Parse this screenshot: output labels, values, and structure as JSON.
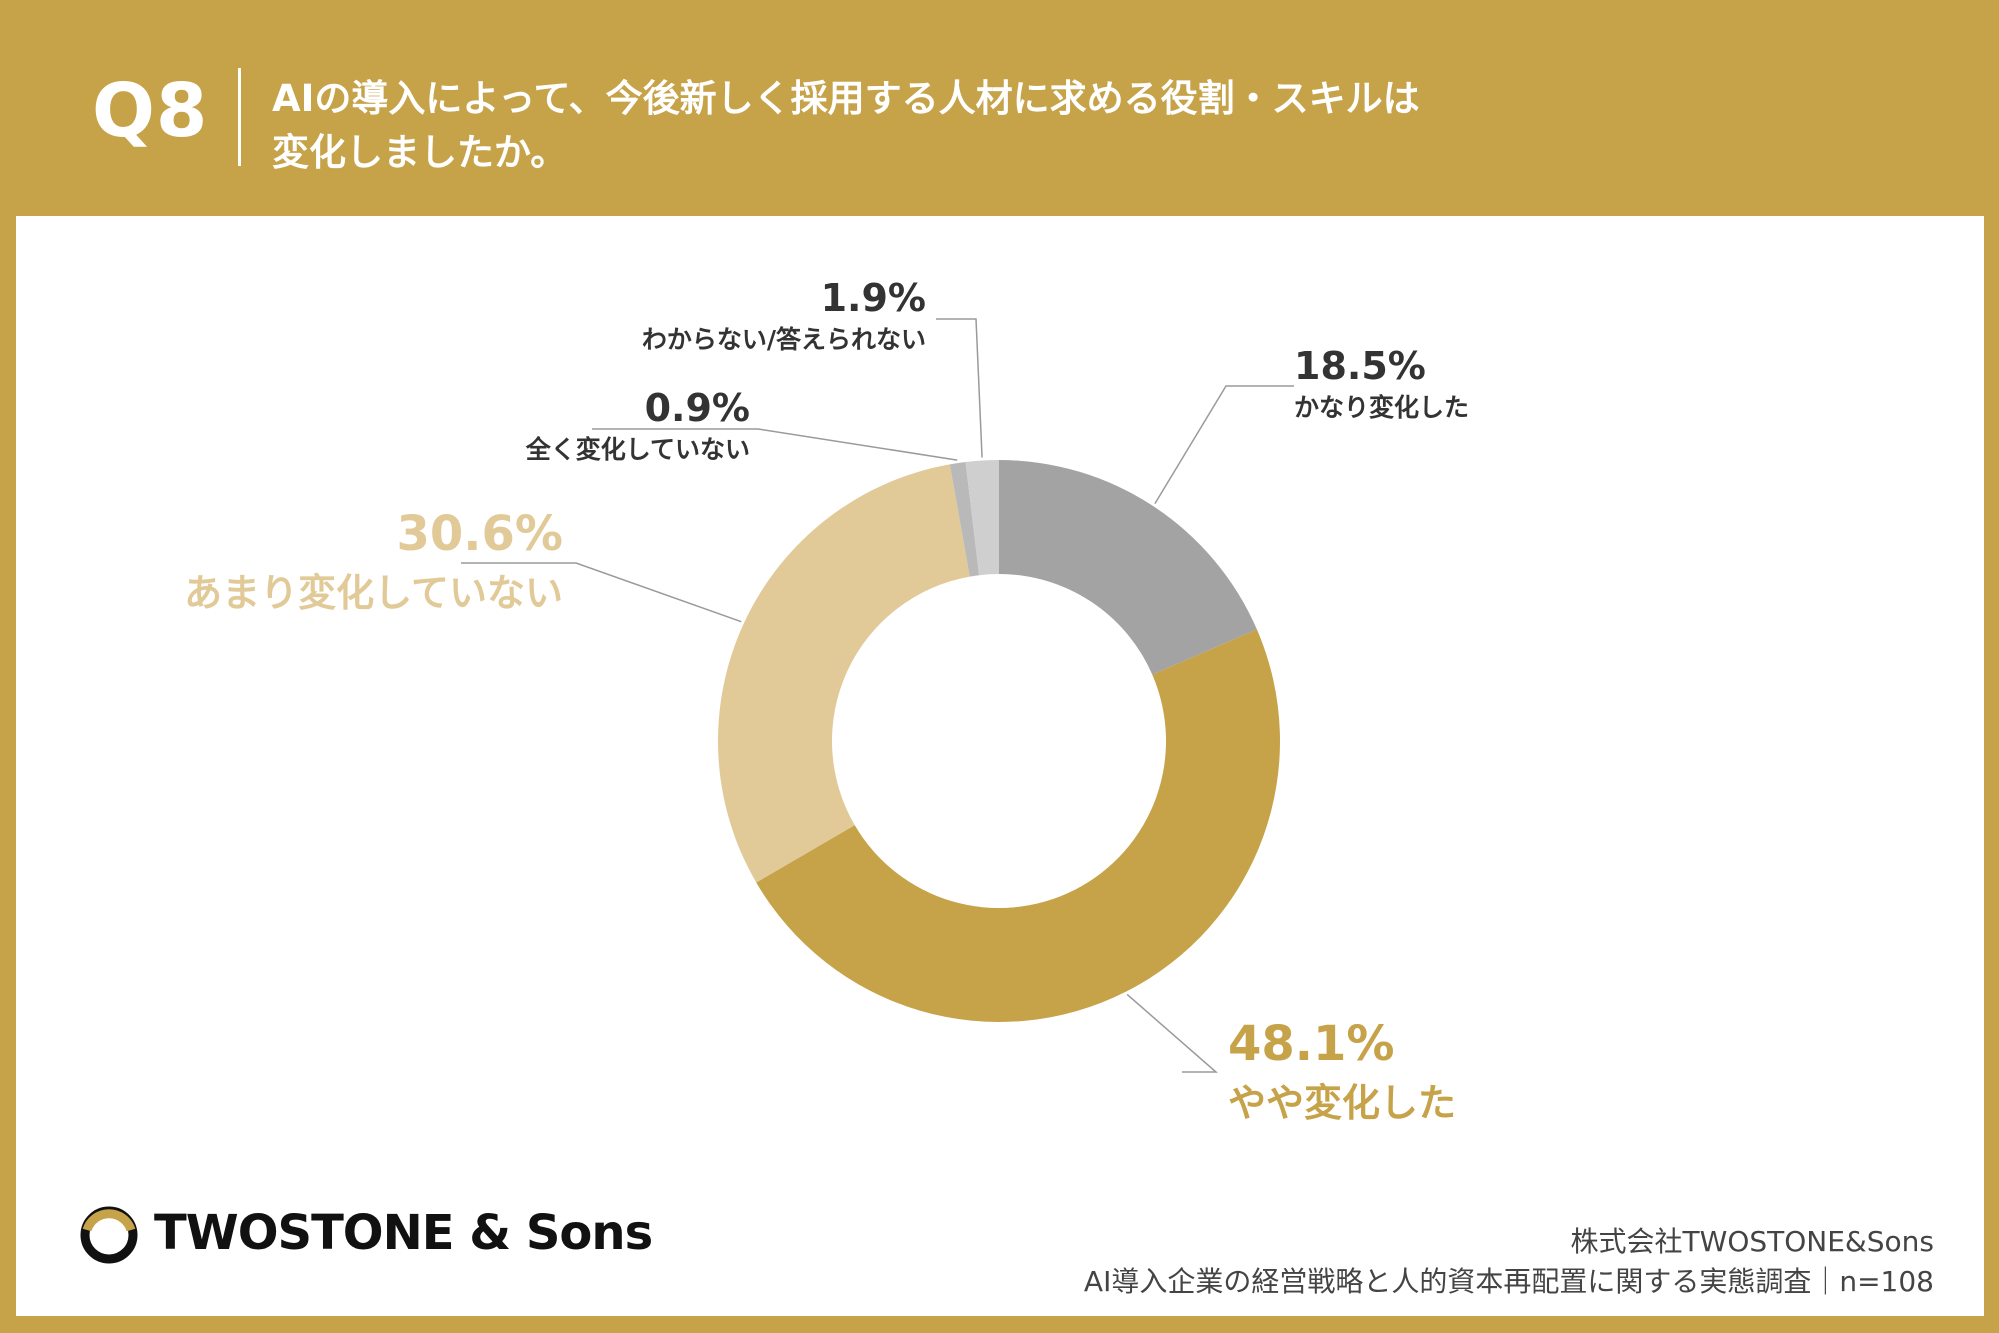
{
  "header": {
    "q_label": "Q8",
    "title_line1": "AIの導入によって、今後新しく採用する人材に求める役割・スキルは",
    "title_line2": "変化しましたか。"
  },
  "chart_data": {
    "type": "pie",
    "donut": true,
    "categories": [
      "かなり変化した",
      "やや変化した",
      "あまり変化していない",
      "全く変化していない",
      "わからない/答えられない"
    ],
    "values": [
      18.5,
      48.1,
      30.6,
      0.9,
      1.9
    ],
    "labels": [
      "18.5%",
      "48.1%",
      "30.6%",
      "0.9%",
      "1.9%"
    ],
    "colors": [
      "#a3a3a3",
      "#c6a249",
      "#e1ca98",
      "#b9b9b9",
      "#cfcfcf"
    ],
    "label_colors": [
      "#333333",
      "#c6a249",
      "#e1ca98",
      "#333333",
      "#333333"
    ],
    "start_angle_deg": 0,
    "direction": "clockwise"
  },
  "footer": {
    "logo_text": "TWOSTONE & Sons",
    "logo_icon": "ring-logo-icon",
    "source_line1": "株式会社TWOSTONE&Sons",
    "source_line2": "AI導入企業の経営戦略と人的資本再配置に関する実態調査｜n=108"
  }
}
